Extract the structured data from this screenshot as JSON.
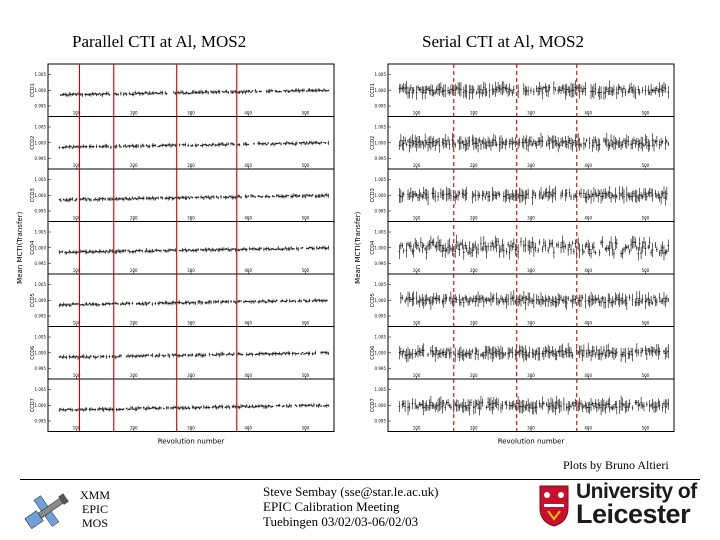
{
  "titles": {
    "left": "Parallel CTI at Al, MOS2",
    "right": "Serial CTI at Al, MOS2"
  },
  "credit": "Plots by Bruno Altieri",
  "footer": {
    "logo_text": [
      "XMM",
      "EPIC",
      "MOS"
    ],
    "presenter": [
      "Steve Sembay (sse@star.le.ac.uk)",
      "EPIC Calibration Meeting",
      "Tuebingen 03/02/03-06/02/03"
    ],
    "university": [
      "University of",
      "Leicester"
    ]
  },
  "colors": {
    "marker_line": "#cc0000",
    "data": "#000000",
    "frame": "#000000",
    "uni_red": "#c8102e"
  },
  "chart_data": [
    {
      "type": "scatter",
      "title": "Parallel CTI at Al, MOS2",
      "xlabel": "Revolution number",
      "ylabel": "Mean MCTI(Transfer)",
      "xlim": [
        50,
        550
      ],
      "xticks": [
        100,
        200,
        300,
        400,
        500
      ],
      "xtick_labels": [
        "100",
        "200",
        "300",
        "400",
        "500"
      ],
      "marker_lines_x": [
        105,
        165,
        275,
        380
      ],
      "panels": [
        {
          "label": "CCD1",
          "trend": [
            0.999,
            1.0
          ],
          "yticks": [
            "0.995",
            "1.000",
            "1.005"
          ]
        },
        {
          "label": "CCD2",
          "trend": [
            0.999,
            1.0
          ],
          "yticks": [
            "0.995",
            "1.000",
            "1.005"
          ]
        },
        {
          "label": "CCD3",
          "trend": [
            0.999,
            1.0
          ],
          "yticks": [
            "0.995",
            "1.000",
            "1.005"
          ]
        },
        {
          "label": "CCD4",
          "trend": [
            0.999,
            1.0
          ],
          "yticks": [
            "0.995",
            "1.000",
            "1.005"
          ]
        },
        {
          "label": "CCD5",
          "trend": [
            0.999,
            1.0
          ],
          "yticks": [
            "0.995",
            "1.000",
            "1.005"
          ]
        },
        {
          "label": "CCD6",
          "trend": [
            0.999,
            1.0
          ],
          "yticks": [
            "0.995",
            "1.000",
            "1.005"
          ]
        },
        {
          "label": "CCD7",
          "trend": [
            0.999,
            1.0
          ],
          "yticks": [
            "0.995",
            "1.000",
            "1.005"
          ]
        }
      ]
    },
    {
      "type": "scatter",
      "title": "Serial CTI at Al, MOS2",
      "xlabel": "Revolution number",
      "ylabel": "Mean MCTI(Transfer)",
      "xlim": [
        50,
        550
      ],
      "xticks": [
        100,
        200,
        300,
        400,
        500
      ],
      "xtick_labels": [
        "100",
        "200",
        "300",
        "400",
        "500"
      ],
      "marker_lines_x": [
        165,
        275,
        380
      ],
      "panels": [
        {
          "label": "CCD1",
          "trend": [
            1.0,
            1.0
          ],
          "yticks": [
            "0.995",
            "1.000",
            "1.005"
          ]
        },
        {
          "label": "CCD2",
          "trend": [
            1.0,
            1.0
          ],
          "yticks": [
            "0.995",
            "1.000",
            "1.005"
          ]
        },
        {
          "label": "CCD3",
          "trend": [
            1.0,
            1.0
          ],
          "yticks": [
            "0.995",
            "1.000",
            "1.005"
          ]
        },
        {
          "label": "CCD4",
          "trend": [
            1.0,
            1.0
          ],
          "yticks": [
            "0.995",
            "1.000",
            "1.005"
          ]
        },
        {
          "label": "CCD5",
          "trend": [
            1.0,
            1.0
          ],
          "yticks": [
            "0.995",
            "1.000",
            "1.005"
          ]
        },
        {
          "label": "CCD6",
          "trend": [
            1.0,
            1.0
          ],
          "yticks": [
            "0.995",
            "1.000",
            "1.005"
          ]
        },
        {
          "label": "CCD7",
          "trend": [
            1.0,
            1.0
          ],
          "yticks": [
            "0.995",
            "1.000",
            "1.005"
          ]
        }
      ]
    }
  ]
}
